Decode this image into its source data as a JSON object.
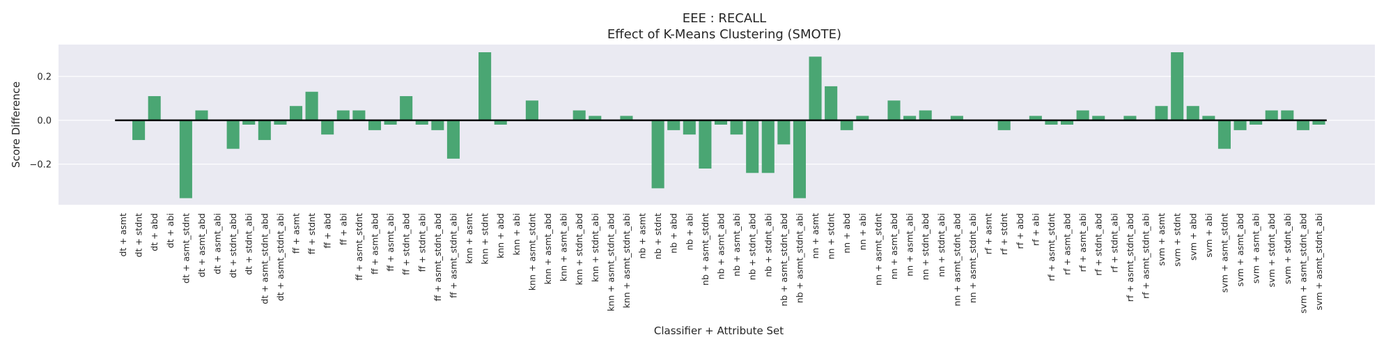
{
  "chart_data": {
    "type": "bar",
    "title": "EEE : RECALL",
    "subtitle": "Effect of K-Means Clustering (SMOTE)",
    "xlabel": "Classifier + Attribute Set",
    "ylabel": "Score Difference",
    "ylim": [
      -0.385,
      0.345
    ],
    "yticks": [
      -0.2,
      0.0,
      0.2
    ],
    "ytick_labels": [
      "−0.2",
      "0.0",
      "0.2"
    ],
    "grid": true,
    "bar_color": "#4aa673",
    "background_color": "#eaeaf2",
    "zero_line_color": "#000000",
    "categories": [
      "dt + asmt",
      "dt + stdnt",
      "dt + abd",
      "dt + abi",
      "dt + asmt_stdnt",
      "dt + asmt_abd",
      "dt + asmt_abi",
      "dt + stdnt_abd",
      "dt + stdnt_abi",
      "dt + asmt_stdnt_abd",
      "dt + asmt_stdnt_abi",
      "ff + asmt",
      "ff + stdnt",
      "ff + abd",
      "ff + abi",
      "ff + asmt_stdnt",
      "ff + asmt_abd",
      "ff + asmt_abi",
      "ff + stdnt_abd",
      "ff + stdnt_abi",
      "ff + asmt_stdnt_abd",
      "ff + asmt_stdnt_abi",
      "knn + asmt",
      "knn + stdnt",
      "knn + abd",
      "knn + abi",
      "knn + asmt_stdnt",
      "knn + asmt_abd",
      "knn + asmt_abi",
      "knn + stdnt_abd",
      "knn + stdnt_abi",
      "knn + asmt_stdnt_abd",
      "knn + asmt_stdnt_abi",
      "nb + asmt",
      "nb + stdnt",
      "nb + abd",
      "nb + abi",
      "nb + asmt_stdnt",
      "nb + asmt_abd",
      "nb + asmt_abi",
      "nb + stdnt_abd",
      "nb + stdnt_abi",
      "nb + asmt_stdnt_abd",
      "nb + asmt_stdnt_abi",
      "nn + asmt",
      "nn + stdnt",
      "nn + abd",
      "nn + abi",
      "nn + asmt_stdnt",
      "nn + asmt_abd",
      "nn + asmt_abi",
      "nn + stdnt_abd",
      "nn + stdnt_abi",
      "nn + asmt_stdnt_abd",
      "nn + asmt_stdnt_abi",
      "rf + asmt",
      "rf + stdnt",
      "rf + abd",
      "rf + abi",
      "rf + asmt_stdnt",
      "rf + asmt_abd",
      "rf + asmt_abi",
      "rf + stdnt_abd",
      "rf + stdnt_abi",
      "rf + asmt_stdnt_abd",
      "rf + asmt_stdnt_abi",
      "svm + asmt",
      "svm + stdnt",
      "svm + abd",
      "svm + abi",
      "svm + asmt_stdnt",
      "svm + asmt_abd",
      "svm + asmt_abi",
      "svm + stdnt_abd",
      "svm + stdnt_abi",
      "svm + asmt_stdnt_abd",
      "svm + asmt_stdnt_abi"
    ],
    "values": [
      0.0,
      -0.09,
      0.11,
      0.0,
      -0.355,
      0.045,
      0.0,
      -0.13,
      -0.02,
      -0.09,
      -0.02,
      0.065,
      0.13,
      -0.065,
      0.045,
      0.045,
      -0.045,
      -0.02,
      0.11,
      -0.02,
      -0.045,
      -0.175,
      0.0,
      0.31,
      -0.02,
      0.0,
      0.09,
      0.0,
      0.0,
      0.045,
      0.02,
      0.0,
      0.02,
      0.0,
      -0.31,
      -0.045,
      -0.065,
      -0.22,
      -0.02,
      -0.065,
      -0.24,
      -0.24,
      -0.11,
      -0.355,
      0.29,
      0.155,
      -0.045,
      0.02,
      0.0,
      0.09,
      0.02,
      0.045,
      0.0,
      0.02,
      0.0,
      0.0,
      -0.045,
      0.0,
      0.02,
      -0.02,
      -0.02,
      0.045,
      0.02,
      0.0,
      0.02,
      0.0,
      0.065,
      0.31,
      0.065,
      0.02,
      -0.13,
      -0.045,
      -0.02,
      0.045,
      0.045,
      -0.045,
      -0.02
    ]
  }
}
